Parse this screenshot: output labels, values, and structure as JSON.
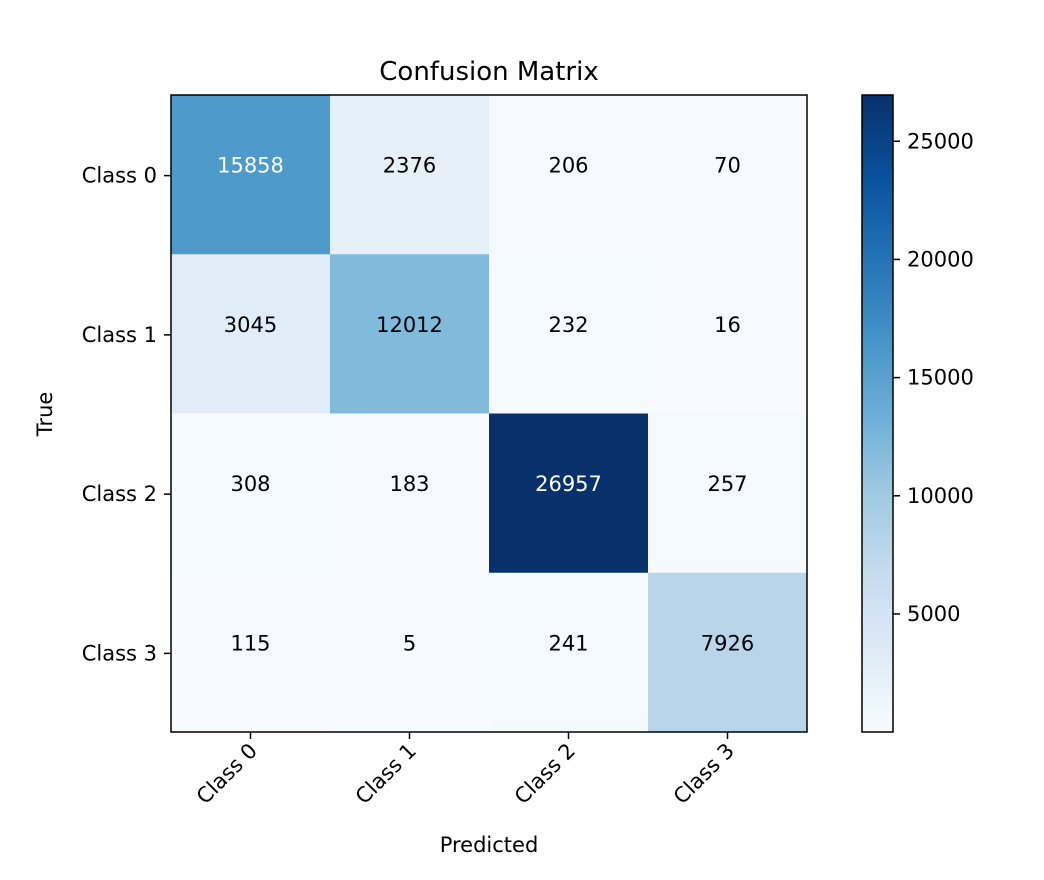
{
  "chart_data": {
    "type": "heatmap",
    "title": "Confusion Matrix",
    "xlabel": "Predicted",
    "ylabel": "True",
    "x_categories": [
      "Class 0",
      "Class 1",
      "Class 2",
      "Class 3"
    ],
    "y_categories": [
      "Class 0",
      "Class 1",
      "Class 2",
      "Class 3"
    ],
    "values": [
      [
        15858,
        2376,
        206,
        70
      ],
      [
        3045,
        12012,
        232,
        16
      ],
      [
        308,
        183,
        26957,
        257
      ],
      [
        115,
        5,
        241,
        7926
      ]
    ],
    "colorscale": "Blues",
    "color_range": [
      5,
      26957
    ],
    "colorbar_ticks": [
      "5000",
      "10000",
      "15000",
      "20000",
      "25000"
    ],
    "colorbar_tick_values": [
      5000,
      10000,
      15000,
      20000,
      25000
    ],
    "x_tick_rotation_deg": 45
  }
}
